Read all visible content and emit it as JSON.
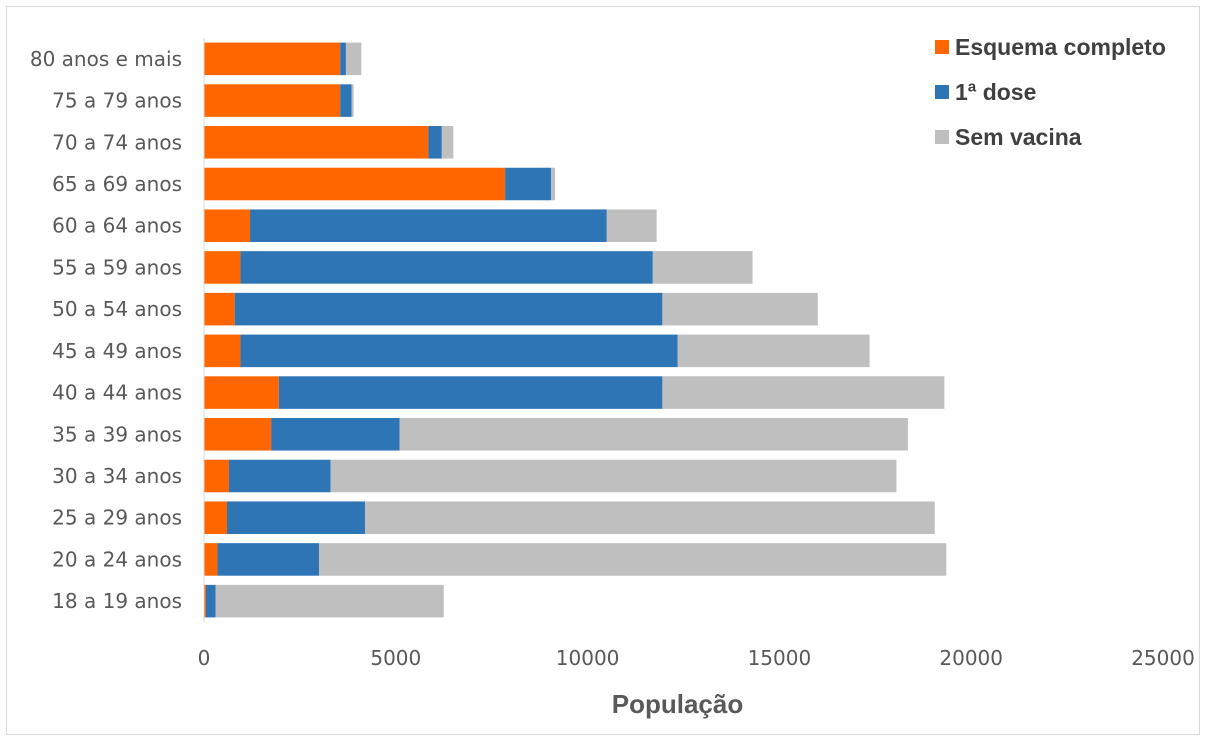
{
  "chart_data": {
    "type": "bar",
    "orientation": "horizontal",
    "stacked": true,
    "categories": [
      "80 anos e mais",
      "75 a 79 anos",
      "70 a 74 anos",
      "65 a 69 anos",
      "60 a 64 anos",
      "55 a 59 anos",
      "50 a 54 anos",
      "45 a 49 anos",
      "40 a 44 anos",
      "35 a 39 anos",
      "30 a 34 anos",
      "25 a 29 anos",
      "20 a 24 anos",
      "18 a 19 anos"
    ],
    "series": [
      {
        "name": "Esquema completo",
        "color": "#ff6600",
        "values": [
          3550,
          3550,
          5850,
          7850,
          1200,
          950,
          800,
          950,
          1950,
          1750,
          650,
          600,
          350,
          50
        ]
      },
      {
        "name": "1ª dose",
        "color": "#2e75b6",
        "values": [
          150,
          300,
          350,
          1200,
          9300,
          10750,
          11150,
          11400,
          10000,
          3350,
          2650,
          3600,
          2650,
          250
        ]
      },
      {
        "name": "Sem vacina",
        "color": "#bfbfbf",
        "values": [
          400,
          50,
          300,
          100,
          1300,
          2600,
          4050,
          5000,
          7350,
          13250,
          14750,
          14850,
          16350,
          5950
        ]
      }
    ],
    "xlabel": "População",
    "ylabel": "",
    "title": "",
    "xlim": [
      0,
      25000
    ],
    "xticks": [
      0,
      5000,
      10000,
      15000,
      20000,
      25000
    ],
    "xtick_labels": [
      "0",
      "5000",
      "10000",
      "15000",
      "20000",
      "25000"
    ],
    "grid": false,
    "legend_position": "top-right"
  }
}
